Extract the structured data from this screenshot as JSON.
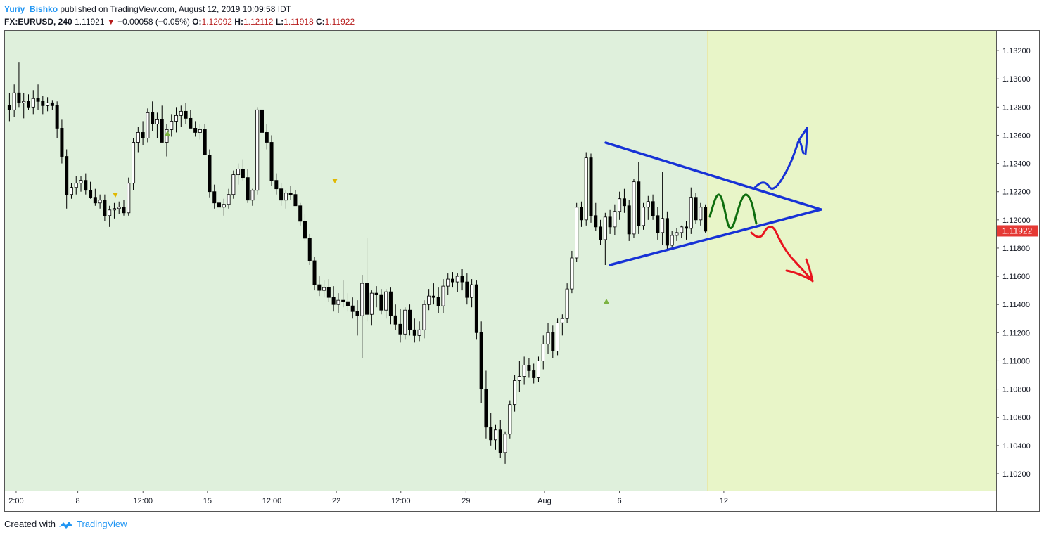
{
  "header": {
    "author": "Yuriy_Bishko",
    "published_text": "published on TradingView.com, August 12, 2019 10:09:58 IDT",
    "symbol": "FX:EURUSD, 240",
    "last": "1.11921",
    "change_arrow": "▼",
    "change": "−0.00058 (−0.05%)",
    "o_label": "O:",
    "o_value": "1.12092",
    "h_label": "H:",
    "h_value": "1.12112",
    "l_label": "L:",
    "l_value": "1.11918",
    "c_label": "C:",
    "c_value": "1.11922"
  },
  "footer": {
    "created_with": "Created with",
    "brand": "TradingView",
    "logo_icon": "tradingview-logo-icon"
  },
  "colors": {
    "bg_past": "#dff0dc",
    "bg_future": "#e8f5c8",
    "bullish": "#ffffff",
    "bearish": "#000000",
    "triangle": "#1732d6",
    "up_arrow": "#1732d6",
    "green_path": "#0f6e0f",
    "down_arrow": "#e8141e",
    "price_tag": "#e53935"
  },
  "chart_data": {
    "type": "candlestick",
    "symbol": "FX:EURUSD",
    "interval": "240",
    "ylim": [
      1.1008,
      1.1334
    ],
    "y_ticks": [
      "1.13200",
      "1.13000",
      "1.12800",
      "1.12600",
      "1.12400",
      "1.12200",
      "1.12000",
      "1.11800",
      "1.11600",
      "1.11400",
      "1.11200",
      "1.11000",
      "1.10800",
      "1.10600",
      "1.10400",
      "1.10200"
    ],
    "x_ticks": [
      "2:00",
      "8",
      "12:00",
      "15",
      "12:00",
      "22",
      "12:00",
      "29",
      "Aug",
      "6",
      "12"
    ],
    "last_price": "1.11922",
    "candles_ohlc": [
      [
        1.1281,
        1.129,
        1.127,
        1.1278
      ],
      [
        1.1278,
        1.1296,
        1.1273,
        1.129
      ],
      [
        1.129,
        1.1312,
        1.128,
        1.1283
      ],
      [
        1.1283,
        1.129,
        1.1272,
        1.1284
      ],
      [
        1.1284,
        1.1289,
        1.1278,
        1.128
      ],
      [
        1.128,
        1.1292,
        1.1275,
        1.1286
      ],
      [
        1.1286,
        1.1296,
        1.1278,
        1.1284
      ],
      [
        1.1284,
        1.1288,
        1.1275,
        1.1281
      ],
      [
        1.1281,
        1.1287,
        1.1277,
        1.1283
      ],
      [
        1.1283,
        1.1285,
        1.1278,
        1.1281
      ],
      [
        1.1281,
        1.1284,
        1.1258,
        1.1265
      ],
      [
        1.1265,
        1.1271,
        1.124,
        1.1245
      ],
      [
        1.1245,
        1.125,
        1.1208,
        1.1218
      ],
      [
        1.1218,
        1.1226,
        1.1215,
        1.1223
      ],
      [
        1.1223,
        1.1231,
        1.1218,
        1.1226
      ],
      [
        1.1226,
        1.1231,
        1.122,
        1.1228
      ],
      [
        1.1228,
        1.1233,
        1.1218,
        1.1221
      ],
      [
        1.1221,
        1.1227,
        1.1215,
        1.1216
      ],
      [
        1.1216,
        1.1222,
        1.121,
        1.1212
      ],
      [
        1.1212,
        1.1218,
        1.1208,
        1.1214
      ],
      [
        1.1214,
        1.1218,
        1.1199,
        1.1203
      ],
      [
        1.1203,
        1.121,
        1.1195,
        1.1207
      ],
      [
        1.1207,
        1.1212,
        1.1201,
        1.1208
      ],
      [
        1.1208,
        1.1213,
        1.1204,
        1.1209
      ],
      [
        1.1209,
        1.1214,
        1.1203,
        1.1205
      ],
      [
        1.1205,
        1.123,
        1.1203,
        1.1226
      ],
      [
        1.1226,
        1.1258,
        1.1221,
        1.1255
      ],
      [
        1.1255,
        1.1266,
        1.1248,
        1.1262
      ],
      [
        1.1262,
        1.127,
        1.1253,
        1.1258
      ],
      [
        1.1258,
        1.1279,
        1.1255,
        1.1276
      ],
      [
        1.1276,
        1.1284,
        1.1263,
        1.1268
      ],
      [
        1.1268,
        1.1276,
        1.1258,
        1.1271
      ],
      [
        1.1271,
        1.1281,
        1.1265,
        1.1255
      ],
      [
        1.1255,
        1.1268,
        1.1245,
        1.1264
      ],
      [
        1.1264,
        1.1275,
        1.1259,
        1.127
      ],
      [
        1.127,
        1.128,
        1.1262,
        1.1274
      ],
      [
        1.1274,
        1.1281,
        1.1266,
        1.1277
      ],
      [
        1.1277,
        1.1283,
        1.1268,
        1.1272
      ],
      [
        1.1272,
        1.1278,
        1.1265,
        1.1265
      ],
      [
        1.1265,
        1.127,
        1.1259,
        1.1262
      ],
      [
        1.1262,
        1.1268,
        1.1257,
        1.1264
      ],
      [
        1.1264,
        1.1268,
        1.1252,
        1.1246
      ],
      [
        1.1246,
        1.125,
        1.1216,
        1.122
      ],
      [
        1.122,
        1.1225,
        1.1208,
        1.1212
      ],
      [
        1.1212,
        1.1217,
        1.1205,
        1.1209
      ],
      [
        1.1209,
        1.1215,
        1.1203,
        1.1211
      ],
      [
        1.1211,
        1.1222,
        1.1208,
        1.1218
      ],
      [
        1.1218,
        1.1235,
        1.1215,
        1.1232
      ],
      [
        1.1232,
        1.124,
        1.1225,
        1.1236
      ],
      [
        1.1236,
        1.1243,
        1.1228,
        1.123
      ],
      [
        1.123,
        1.1236,
        1.1212,
        1.1214
      ],
      [
        1.1214,
        1.1222,
        1.121,
        1.1221
      ],
      [
        1.1221,
        1.128,
        1.1218,
        1.1278
      ],
      [
        1.1278,
        1.1283,
        1.1258,
        1.1262
      ],
      [
        1.1262,
        1.1268,
        1.125,
        1.1255
      ],
      [
        1.1255,
        1.126,
        1.1224,
        1.1228
      ],
      [
        1.1228,
        1.1233,
        1.1218,
        1.1222
      ],
      [
        1.1222,
        1.1226,
        1.121,
        1.1214
      ],
      [
        1.1214,
        1.1221,
        1.1208,
        1.1219
      ],
      [
        1.1219,
        1.1224,
        1.1214,
        1.1218
      ],
      [
        1.1218,
        1.1221,
        1.121,
        1.121
      ],
      [
        1.121,
        1.1212,
        1.1196,
        1.1199
      ],
      [
        1.1199,
        1.1204,
        1.1185,
        1.1187
      ],
      [
        1.1187,
        1.119,
        1.1168,
        1.1171
      ],
      [
        1.1171,
        1.1174,
        1.115,
        1.1154
      ],
      [
        1.1154,
        1.116,
        1.1146,
        1.115
      ],
      [
        1.115,
        1.1157,
        1.1145,
        1.1152
      ],
      [
        1.1152,
        1.1158,
        1.1142,
        1.1145
      ],
      [
        1.1145,
        1.1153,
        1.1135,
        1.114
      ],
      [
        1.114,
        1.1148,
        1.1134,
        1.1143
      ],
      [
        1.1143,
        1.1157,
        1.1138,
        1.1142
      ],
      [
        1.1142,
        1.1148,
        1.1135,
        1.1139
      ],
      [
        1.1139,
        1.1145,
        1.113,
        1.1135
      ],
      [
        1.1135,
        1.1143,
        1.1118,
        1.1132
      ],
      [
        1.1132,
        1.1161,
        1.1102,
        1.1155
      ],
      [
        1.1155,
        1.1187,
        1.1128,
        1.1133
      ],
      [
        1.1133,
        1.115,
        1.1125,
        1.1148
      ],
      [
        1.1148,
        1.1153,
        1.1138,
        1.1147
      ],
      [
        1.1147,
        1.1151,
        1.1133,
        1.1136
      ],
      [
        1.1136,
        1.1151,
        1.113,
        1.1149
      ],
      [
        1.1149,
        1.1152,
        1.1126,
        1.1132
      ],
      [
        1.1132,
        1.114,
        1.1122,
        1.1126
      ],
      [
        1.1126,
        1.1137,
        1.1113,
        1.1119
      ],
      [
        1.1119,
        1.1138,
        1.1115,
        1.1136
      ],
      [
        1.1136,
        1.114,
        1.1118,
        1.1122
      ],
      [
        1.1122,
        1.113,
        1.1113,
        1.1118
      ],
      [
        1.1118,
        1.1128,
        1.1114,
        1.1122
      ],
      [
        1.1122,
        1.1143,
        1.1116,
        1.114
      ],
      [
        1.114,
        1.1151,
        1.1136,
        1.1146
      ],
      [
        1.1146,
        1.1155,
        1.114,
        1.1145
      ],
      [
        1.1145,
        1.1152,
        1.1134,
        1.1139
      ],
      [
        1.1139,
        1.1158,
        1.1134,
        1.1153
      ],
      [
        1.1153,
        1.1162,
        1.1147,
        1.1158
      ],
      [
        1.1158,
        1.1163,
        1.1152,
        1.1156
      ],
      [
        1.1156,
        1.1162,
        1.1149,
        1.116
      ],
      [
        1.116,
        1.1165,
        1.115,
        1.1156
      ],
      [
        1.1156,
        1.1162,
        1.114,
        1.1145
      ],
      [
        1.1145,
        1.1158,
        1.1138,
        1.1154
      ],
      [
        1.1154,
        1.1157,
        1.1115,
        1.112
      ],
      [
        1.112,
        1.1128,
        1.107,
        1.108
      ],
      [
        1.108,
        1.1093,
        1.1045,
        1.1053
      ],
      [
        1.1053,
        1.1063,
        1.104,
        1.1044
      ],
      [
        1.1044,
        1.1055,
        1.1037,
        1.1051
      ],
      [
        1.1051,
        1.1058,
        1.1031,
        1.1035
      ],
      [
        1.1035,
        1.105,
        1.1027,
        1.1048
      ],
      [
        1.1048,
        1.1072,
        1.1045,
        1.1069
      ],
      [
        1.1069,
        1.109,
        1.1064,
        1.1086
      ],
      [
        1.1086,
        1.11,
        1.1078,
        1.1089
      ],
      [
        1.1089,
        1.1103,
        1.1083,
        1.1097
      ],
      [
        1.1097,
        1.1102,
        1.1088,
        1.1093
      ],
      [
        1.1093,
        1.1098,
        1.1084,
        1.1088
      ],
      [
        1.1088,
        1.1103,
        1.1085,
        1.11
      ],
      [
        1.11,
        1.1118,
        1.1094,
        1.1112
      ],
      [
        1.1112,
        1.1127,
        1.1105,
        1.112
      ],
      [
        1.112,
        1.1125,
        1.1102,
        1.1107
      ],
      [
        1.1107,
        1.113,
        1.1104,
        1.1127
      ],
      [
        1.1127,
        1.1133,
        1.1118,
        1.113
      ],
      [
        1.113,
        1.1155,
        1.1127,
        1.1151
      ],
      [
        1.1151,
        1.1178,
        1.1148,
        1.1173
      ],
      [
        1.1173,
        1.1212,
        1.117,
        1.1209
      ],
      [
        1.1209,
        1.1213,
        1.1195,
        1.12
      ],
      [
        1.12,
        1.1248,
        1.1196,
        1.1244
      ],
      [
        1.1244,
        1.1247,
        1.1198,
        1.1203
      ],
      [
        1.1203,
        1.1212,
        1.1192,
        1.1195
      ],
      [
        1.1195,
        1.12,
        1.1182,
        1.1186
      ],
      [
        1.1186,
        1.1205,
        1.1168,
        1.1202
      ],
      [
        1.1202,
        1.1207,
        1.119,
        1.1195
      ],
      [
        1.1195,
        1.1211,
        1.1189,
        1.1206
      ],
      [
        1.1206,
        1.122,
        1.12,
        1.1215
      ],
      [
        1.1215,
        1.1222,
        1.1205,
        1.121
      ],
      [
        1.121,
        1.1214,
        1.1185,
        1.119
      ],
      [
        1.119,
        1.1229,
        1.1187,
        1.1227
      ],
      [
        1.1227,
        1.1241,
        1.119,
        1.1196
      ],
      [
        1.1196,
        1.1212,
        1.1193,
        1.1209
      ],
      [
        1.1209,
        1.1217,
        1.12,
        1.1213
      ],
      [
        1.1213,
        1.1218,
        1.12,
        1.1203
      ],
      [
        1.1203,
        1.1209,
        1.1186,
        1.1191
      ],
      [
        1.1191,
        1.1234,
        1.1182,
        1.1201
      ],
      [
        1.1201,
        1.1206,
        1.1178,
        1.1182
      ],
      [
        1.1182,
        1.1192,
        1.1179,
        1.1189
      ],
      [
        1.1189,
        1.1194,
        1.1185,
        1.1191
      ],
      [
        1.1191,
        1.1196,
        1.1187,
        1.1195
      ],
      [
        1.1195,
        1.1199,
        1.1186,
        1.1194
      ],
      [
        1.1194,
        1.1223,
        1.119,
        1.1216
      ],
      [
        1.1216,
        1.1219,
        1.1197,
        1.12
      ],
      [
        1.12,
        1.1212,
        1.1196,
        1.1209
      ],
      [
        1.1209,
        1.1211,
        1.1191,
        1.1192
      ]
    ]
  }
}
